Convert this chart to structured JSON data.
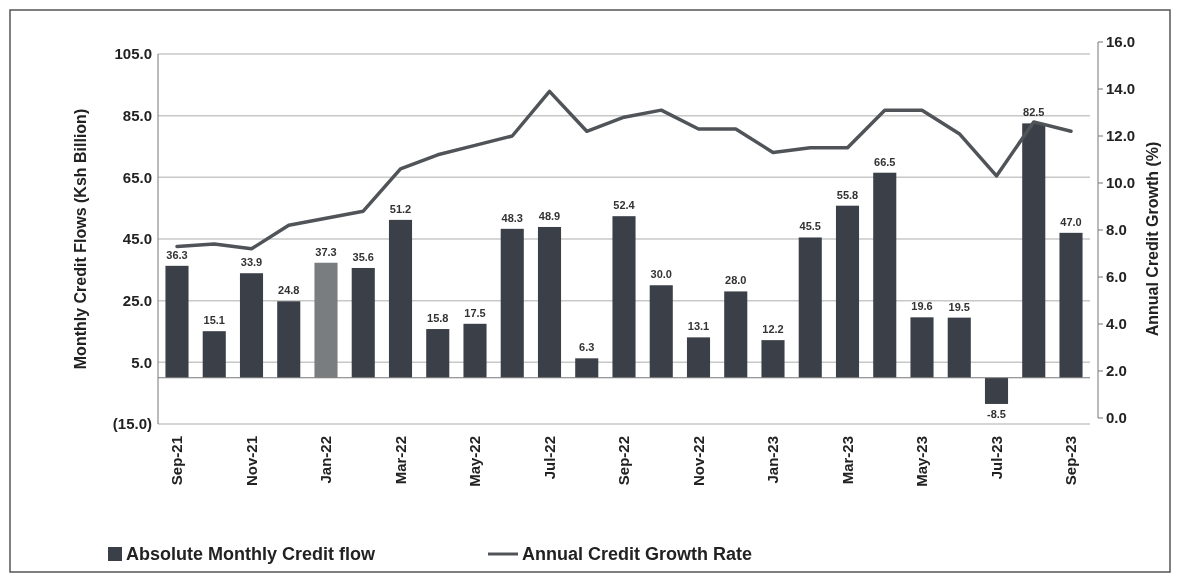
{
  "chart_data": {
    "type": "bar",
    "ylabel": "Monthly Credit Flows (Ksh Billion)",
    "y2label": "Annual Credit Growth (%)",
    "categories": [
      "Sep-21",
      null,
      "Nov-21",
      null,
      "Jan-22",
      null,
      "Mar-22",
      null,
      "May-22",
      null,
      "Jul-22",
      null,
      "Sep-22",
      null,
      "Nov-22",
      null,
      "Jan-23",
      null,
      "Mar-23",
      null,
      "May-23",
      null,
      "Jul-23",
      null,
      "Sep-23"
    ],
    "series": [
      {
        "name": "Absolute Monthly Credit flow",
        "color": "#3b4048",
        "colors": [
          "#3b4048",
          "#3b4048",
          "#3b4048",
          "#3b4048",
          "#7a7d80",
          "#3b4048",
          "#3b4048",
          "#3b4048",
          "#3b4048",
          "#3b4048",
          "#3b4048",
          "#3b4048",
          "#3b4048",
          "#3b4048",
          "#3b4048",
          "#3b4048",
          "#3b4048",
          "#3b4048",
          "#3b4048",
          "#3b4048",
          "#3b4048",
          "#3b4048",
          "#3b4048",
          "#3b4048",
          "#3b4048"
        ],
        "values": [
          36.3,
          15.1,
          33.9,
          24.8,
          37.3,
          35.6,
          51.2,
          15.8,
          17.5,
          48.3,
          48.9,
          6.3,
          52.4,
          30.0,
          13.1,
          28.0,
          12.2,
          45.5,
          55.8,
          66.5,
          19.6,
          19.5,
          -8.5,
          82.5,
          47.0
        ],
        "value_labels": [
          "36.3",
          "15.1",
          "33.9",
          "24.8",
          "37.3",
          "35.6",
          "51.2",
          "15.8",
          "17.5",
          "48.3",
          "48.9",
          "6.3",
          "52.4",
          "30.0",
          "13.1",
          "28.0",
          "12.2",
          "45.5",
          "55.8",
          "66.5",
          "19.6",
          "19.5",
          "-8.5",
          "82.5",
          "47.0"
        ]
      },
      {
        "name": "Annual Credit Growth Rate",
        "type": "line",
        "axis": "y2",
        "color": "#505458",
        "values": [
          7.3,
          7.4,
          7.2,
          8.2,
          8.5,
          8.8,
          10.6,
          11.2,
          11.6,
          12.0,
          13.9,
          12.2,
          12.8,
          13.1,
          12.3,
          12.3,
          11.3,
          11.5,
          11.5,
          13.1,
          13.1,
          12.1,
          10.3,
          12.6,
          12.2
        ]
      }
    ],
    "ylim": [
      -15,
      105
    ],
    "yticks": [
      {
        "value": -15,
        "label": "(15.0)"
      },
      {
        "value": 5,
        "label": "5.0"
      },
      {
        "value": 25,
        "label": "25.0"
      },
      {
        "value": 45,
        "label": "45.0"
      },
      {
        "value": 65,
        "label": "65.0"
      },
      {
        "value": 85,
        "label": "85.0"
      },
      {
        "value": 105,
        "label": "105.0"
      }
    ],
    "y2lim": [
      0,
      16
    ],
    "y2ticks": [
      {
        "value": 0,
        "label": "0.0"
      },
      {
        "value": 2,
        "label": "2.0"
      },
      {
        "value": 4,
        "label": "4.0"
      },
      {
        "value": 6,
        "label": "6.0"
      },
      {
        "value": 8,
        "label": "8.0"
      },
      {
        "value": 10,
        "label": "10.0"
      },
      {
        "value": 12,
        "label": "12.0"
      },
      {
        "value": 14,
        "label": "14.0"
      },
      {
        "value": 16,
        "label": "16.0"
      }
    ],
    "grid": "y",
    "legend": "bottom left",
    "marker": "none",
    "line_style": "solid"
  }
}
